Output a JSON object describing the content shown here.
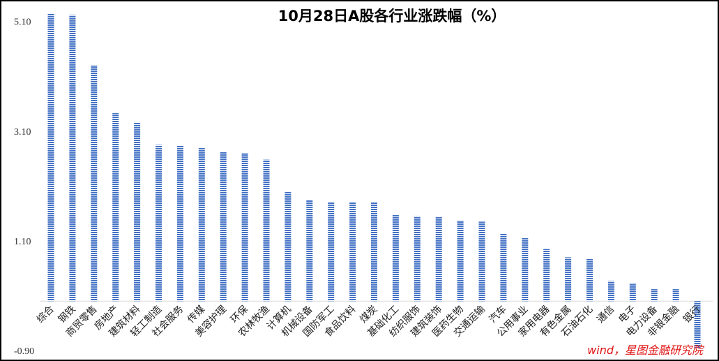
{
  "chart_data": {
    "type": "bar",
    "title": "10月28日A股各行业涨跌幅（%）",
    "xlabel": "",
    "ylabel": "",
    "ylim": [
      -0.9,
      5.3
    ],
    "y_ticks": [
      "5.10",
      "3.10",
      "1.10",
      "-0.90"
    ],
    "y_tick_values": [
      5.1,
      3.1,
      1.1,
      -0.9
    ],
    "grid": false,
    "legend": "none",
    "bar_color": "#4472c4",
    "categories": [
      "综合",
      "钢铁",
      "商贸零售",
      "房地产",
      "建筑材料",
      "轻工制造",
      "社会服务",
      "传媒",
      "美容护理",
      "环保",
      "农林牧渔",
      "计算机",
      "机械设备",
      "国防军工",
      "食品饮料",
      "煤炭",
      "基础化工",
      "纺织服饰",
      "建筑装饰",
      "医药生物",
      "交通运输",
      "汽车",
      "公用事业",
      "家用电器",
      "有色金属",
      "石油石化",
      "通信",
      "电子",
      "电力设备",
      "非银金融",
      "银行"
    ],
    "values": [
      5.25,
      5.22,
      4.3,
      3.43,
      3.25,
      2.85,
      2.84,
      2.8,
      2.73,
      2.7,
      2.58,
      2.0,
      1.85,
      1.8,
      1.8,
      1.8,
      1.58,
      1.55,
      1.54,
      1.47,
      1.45,
      1.23,
      1.15,
      0.95,
      0.8,
      0.77,
      0.37,
      0.33,
      0.22,
      0.22,
      -0.85
    ]
  },
  "source_note": "wind，星图金融研究院"
}
